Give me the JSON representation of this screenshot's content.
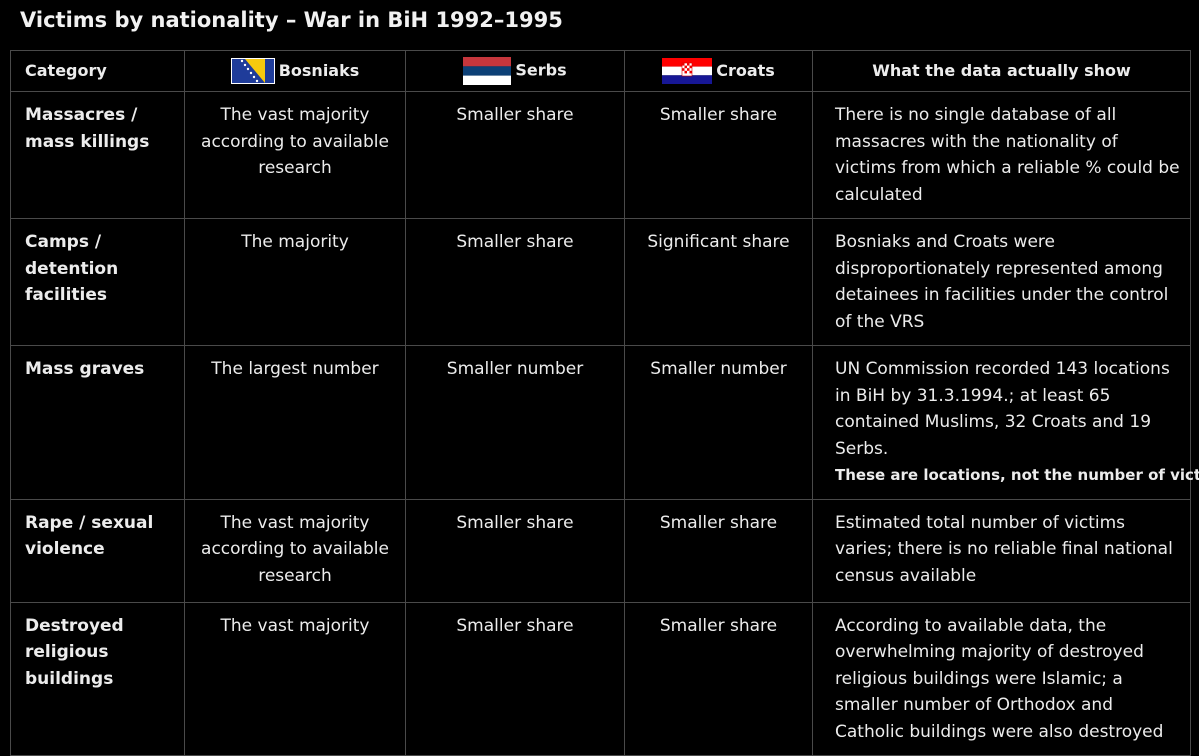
{
  "header": {
    "title": "Victims by nationality – War in BiH 1992–1995"
  },
  "table": {
    "columns": [
      "Category",
      "Bosniaks",
      "Serbs",
      "Croats",
      "What the data actually show"
    ],
    "rows": [
      {
        "cells": [
          "Massacres / mass killings",
          "The vast majority according to available research",
          "Smaller share",
          "Smaller share",
          "There is no single database of all massacres with the nationality of victims from which a reliable % could be calculated"
        ]
      },
      {
        "cells": [
          "Camps / detention facilities",
          "The majority",
          "Smaller share",
          "Significant share",
          "Bosniaks and Croats were disproportionately represented among detainees in facilities under the control of the VRS"
        ]
      },
      {
        "cells": [
          "Mass graves",
          "The largest number",
          "Smaller number",
          "Smaller number",
          "UN Commission recorded 143 locations in BiH by 31.3.1994.; at least 65 contained Muslims, 32 Croats and 19 Serbs."
        ],
        "note": "These are locations, not the number of victims"
      },
      {
        "cells": [
          "Rape / sexual violence",
          "The vast majority according to available research",
          "Smaller share",
          "Smaller share",
          "Estimated total number of victims varies; there is no reliable final national census available"
        ]
      },
      {
        "cells": [
          "Destroyed religious buildings",
          "The vast majority",
          "Smaller share",
          "Smaller share",
          "According to available data, the overwhelming majority of destroyed religious buildings were Islamic; a smaller number of Orthodox and Catholic buildings were also destroyed"
        ]
      }
    ]
  }
}
